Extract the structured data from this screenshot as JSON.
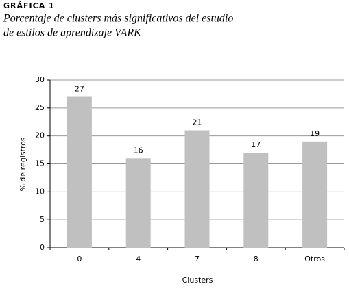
{
  "label": "GRÁFICA 1",
  "title": [
    "Porcentaje de clusters más significativos del estudio",
    "de estilos de aprendizaje VARK"
  ],
  "chart_data": {
    "type": "bar",
    "categories": [
      "0",
      "4",
      "7",
      "8",
      "Otros"
    ],
    "values": [
      27,
      16,
      21,
      17,
      19
    ],
    "color": "#c0c0c0",
    "x_label": "Clusters",
    "y_label": "% de registros",
    "ylim": [
      0,
      30
    ],
    "yticks": [
      0,
      5,
      10,
      15,
      20,
      25,
      30
    ],
    "grid": true
  }
}
